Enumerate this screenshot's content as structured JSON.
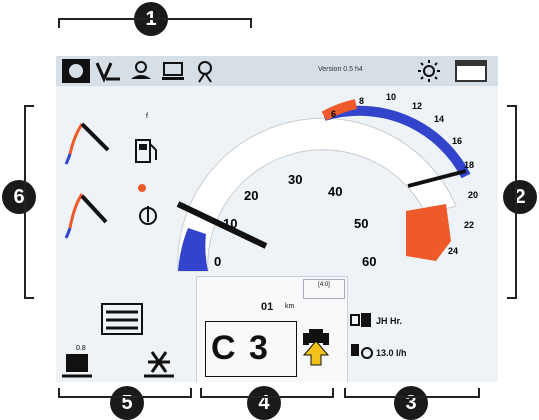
{
  "callouts": [
    "1",
    "2",
    "3",
    "4",
    "5",
    "6"
  ],
  "topbar": {
    "icons": [
      "circle-icon",
      "v-mark-icon",
      "person-icon",
      "screen-icon",
      "antenna-icon"
    ],
    "version_text": "Version 0.5 h4",
    "sun_icon": "sun-icon",
    "window_icon": "window-icon"
  },
  "speed_gauge": {
    "ticks": [
      "0",
      "10",
      "20",
      "30",
      "40",
      "50",
      "60"
    ]
  },
  "rpm_gauge": {
    "ticks": [
      "6",
      "8",
      "10",
      "12",
      "14",
      "16",
      "18",
      "20",
      "22",
      "24"
    ]
  },
  "left_gauges": {
    "fuel_icon": "fuel-icon",
    "fuel_small": "f",
    "temp_icon": "coolant-temp-icon"
  },
  "bottom_center": {
    "box_label": "[4:0]",
    "distance": "01",
    "distance_unit": "km",
    "gear": "C 3",
    "tractor_icon": "tractor-arrow-icon"
  },
  "bottom_right": {
    "hours": "JH Hr.",
    "fuel_rate": "13.0 l/h"
  },
  "bottom_left": {
    "settings_icon": "settings-sliders-icon",
    "lift_icon": "lift-icon",
    "hitch_icon": "hitch-icon",
    "small_label": "0.8"
  },
  "colors": {
    "blue": "#3344cc",
    "red": "#ef5a2a",
    "dark": "#111111"
  }
}
